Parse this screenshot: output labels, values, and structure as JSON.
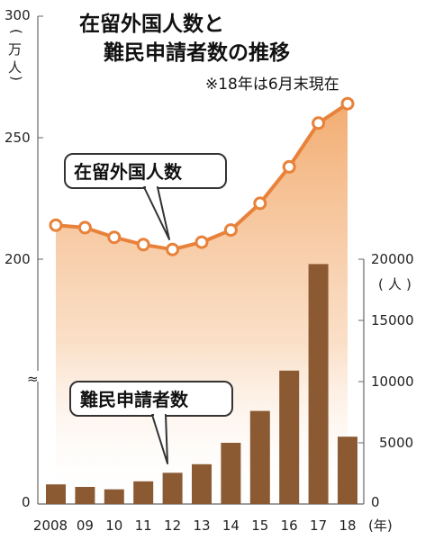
{
  "title_lines": [
    "在留外国人数と",
    "難民申請者数の推移"
  ],
  "note": "※18年は6月末現在",
  "chart_data": {
    "type": "line+bar",
    "categories": [
      "2008",
      "09",
      "10",
      "11",
      "12",
      "13",
      "14",
      "15",
      "16",
      "17",
      "18"
    ],
    "x_unit": "(年)",
    "left_axis": {
      "unit_chars": [
        "(",
        "万",
        "人",
        ")"
      ],
      "ticks": [
        "300",
        "250",
        "200",
        "0"
      ],
      "break_symbol": "≈",
      "range": [
        200,
        300
      ],
      "broken": true
    },
    "right_axis": {
      "unit_chars": [
        "(",
        "人",
        ")"
      ],
      "ticks": [
        "20000",
        "15000",
        "10000",
        "5000",
        "0"
      ],
      "range": [
        0,
        20000
      ]
    },
    "series": [
      {
        "name": "在留外国人数",
        "kind": "line",
        "axis": "left",
        "color": "#e8823a",
        "values": [
          214,
          213,
          209,
          206,
          204,
          207,
          212,
          223,
          238,
          256,
          264
        ]
      },
      {
        "name": "難民申請者数",
        "kind": "bar",
        "axis": "right",
        "color": "#8b5a32",
        "values": [
          1600,
          1400,
          1200,
          1850,
          2550,
          3250,
          5000,
          7600,
          10900,
          19600,
          5500
        ]
      }
    ]
  }
}
